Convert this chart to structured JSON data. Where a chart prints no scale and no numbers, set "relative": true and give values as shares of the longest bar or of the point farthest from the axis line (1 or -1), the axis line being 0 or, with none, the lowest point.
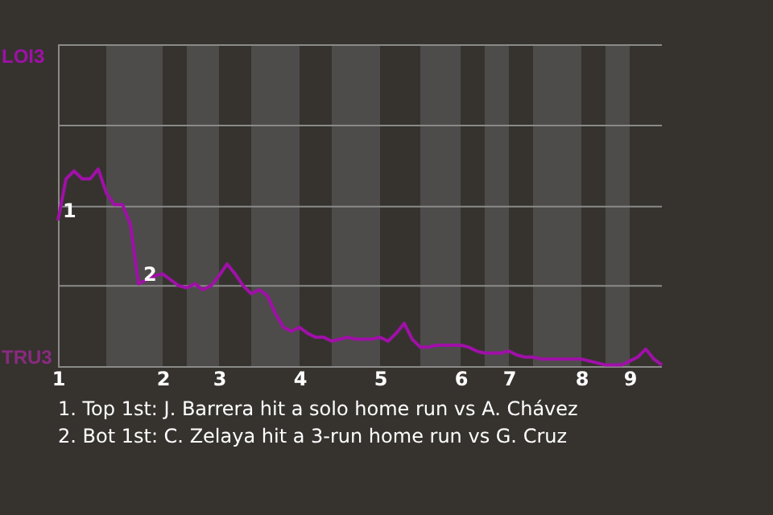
{
  "chart_data": {
    "type": "line",
    "relative": true,
    "categories": [
      "1",
      null,
      null,
      null,
      null,
      null,
      null,
      null,
      null,
      null,
      null,
      null,
      null,
      "2",
      null,
      null,
      null,
      null,
      null,
      null,
      "3",
      null,
      null,
      null,
      null,
      null,
      null,
      null,
      null,
      null,
      "4",
      null,
      null,
      null,
      null,
      null,
      null,
      null,
      null,
      null,
      "5",
      null,
      null,
      null,
      null,
      null,
      null,
      null,
      null,
      null,
      "6",
      null,
      null,
      null,
      null,
      null,
      "7",
      null,
      null,
      null,
      null,
      null,
      null,
      null,
      null,
      "8",
      null,
      null,
      null,
      null,
      null,
      "9",
      null,
      null,
      null,
      null
    ],
    "series": [
      {
        "color": "#a010a8",
        "values": [
          0.74,
          0.95,
          0.99,
          0.95,
          0.95,
          1,
          0.88,
          0.82,
          0.82,
          0.72,
          0.42,
          0.44,
          0.46,
          0.47,
          0.44,
          0.41,
          0.4,
          0.42,
          0.39,
          0.41,
          0.46,
          0.52,
          0.47,
          0.41,
          0.37,
          0.39,
          0.36,
          0.27,
          0.2,
          0.18,
          0.2,
          0.17,
          0.15,
          0.15,
          0.13,
          0.14,
          0.15,
          0.14,
          0.14,
          0.14,
          0.15,
          0.13,
          0.17,
          0.22,
          0.14,
          0.1,
          0.1,
          0.11,
          0.11,
          0.11,
          0.11,
          0.1,
          0.08,
          0.07,
          0.07,
          0.07,
          0.08,
          0.06,
          0.05,
          0.05,
          0.04,
          0.04,
          0.04,
          0.04,
          0.04,
          0.04,
          0.03,
          0.02,
          0.01,
          0.01,
          0.01,
          0.03,
          0.05,
          0.09,
          0.04,
          0.01
        ]
      }
    ],
    "ref_lines": [
      {
        "axis": "y",
        "value": 0.41,
        "color": "#8a8a88"
      },
      {
        "axis": "y",
        "value": 0.81,
        "color": "#8a8a88"
      },
      {
        "axis": "y",
        "value": 1.22,
        "color": "#8a8a88"
      }
    ],
    "annotations": [
      "LOI3",
      "TRU3",
      {
        "text": "1",
        "x": "1",
        "y": 0.74
      },
      {
        "text": "2",
        "y": 0.42
      },
      "1. Top 1st: J. Barrera hit a solo home run vs A. Chávez",
      "2. Bot 1st: C. Zelaya hit a 3-run home run vs G. Cruz"
    ]
  }
}
